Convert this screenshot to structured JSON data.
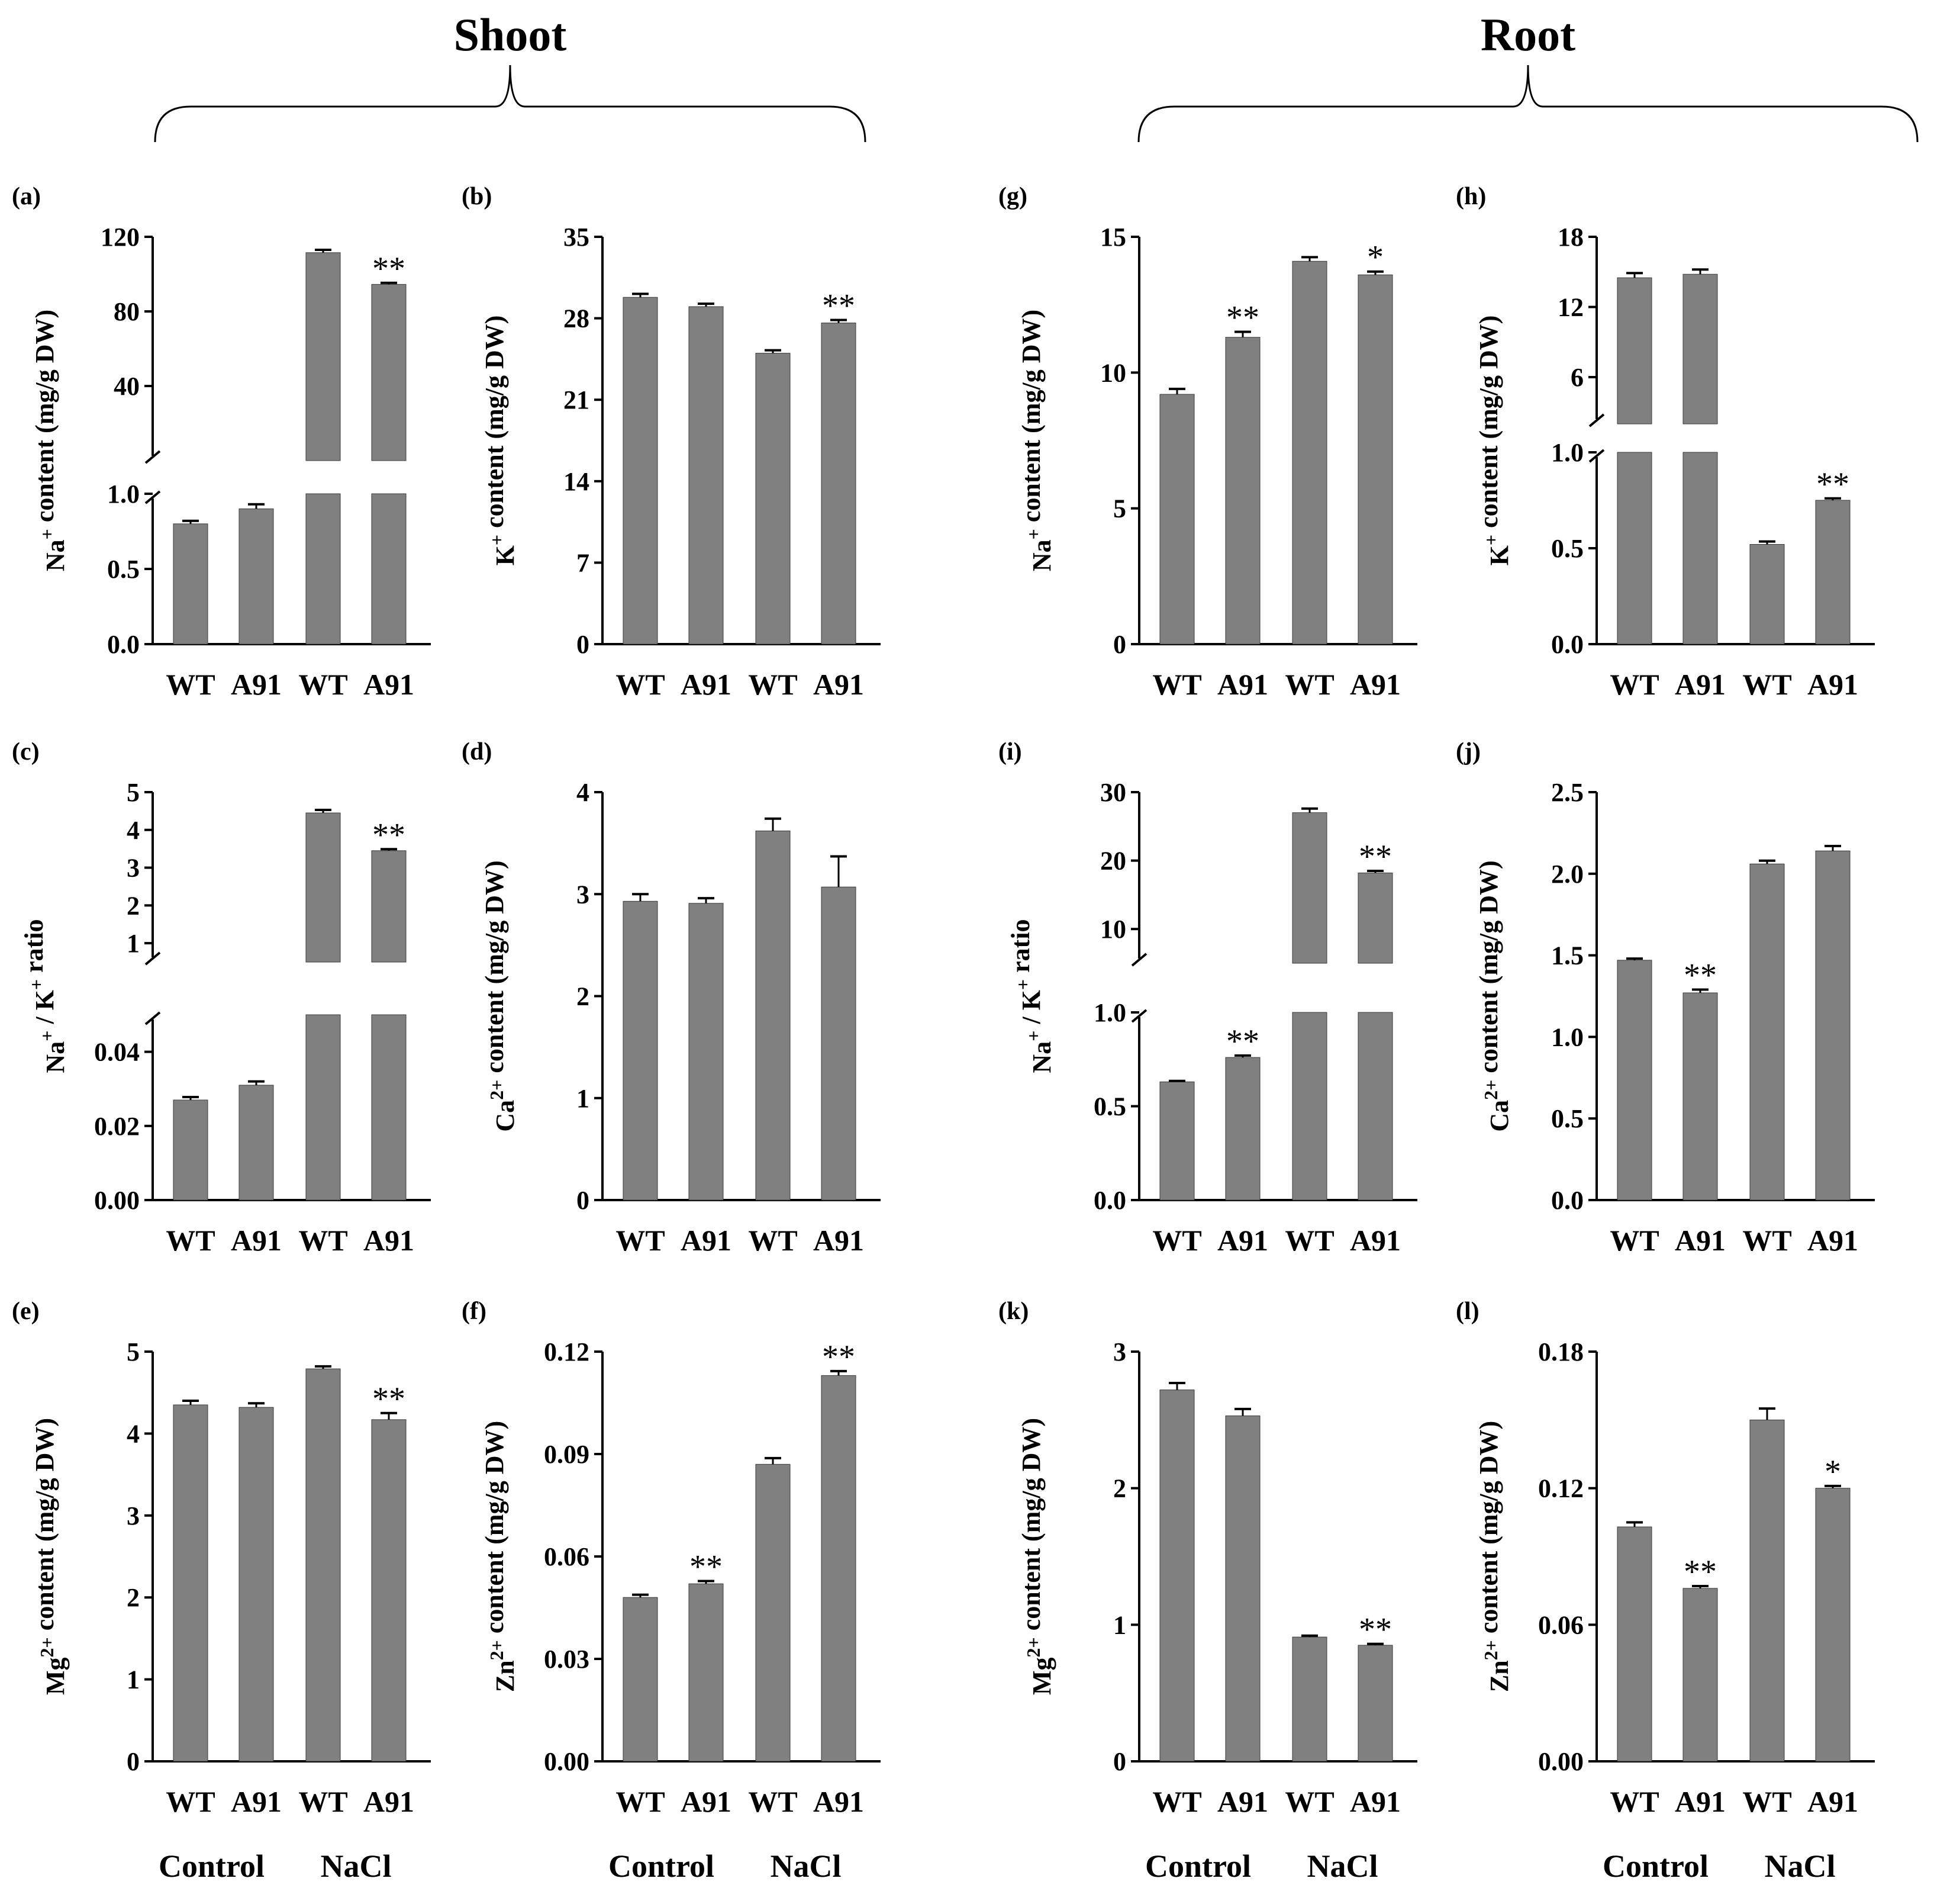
{
  "figure": {
    "section_titles": [
      "Shoot",
      "Root"
    ],
    "group_labels": [
      "Control",
      "NaCl"
    ]
  },
  "colors": {
    "bar": "#808080",
    "bar_edge": "#3a3a3a",
    "axis": "#000000",
    "text": "#000000"
  },
  "chart_data": [
    {
      "id": "a",
      "label": "(a)",
      "type": "bar",
      "section": "Shoot",
      "ylabel": "Na+ content (mg/g DW)",
      "categories": [
        "WT",
        "A91",
        "WT",
        "A91"
      ],
      "values": [
        0.8,
        0.9,
        111.5,
        94.5
      ],
      "errors": [
        0.02,
        0.03,
        1.5,
        0.8
      ],
      "significance": [
        "",
        "",
        "",
        "**"
      ],
      "broken_axis": {
        "lower": {
          "range": [
            0,
            1.0
          ],
          "ticks": [
            0.0,
            0.5,
            1.0
          ],
          "tick_labels": [
            "0.0",
            "0.5",
            "1.0"
          ]
        },
        "upper": {
          "range": [
            0,
            120
          ],
          "ticks": [
            40,
            80,
            120
          ],
          "tick_labels": [
            "40",
            "80",
            "120"
          ]
        }
      },
      "group_labels_shown": false
    },
    {
      "id": "b",
      "label": "(b)",
      "type": "bar",
      "section": "Shoot",
      "ylabel": "K+ content (mg/g DW)",
      "categories": [
        "WT",
        "A91",
        "WT",
        "A91"
      ],
      "values": [
        29.8,
        29.0,
        25.0,
        27.6
      ],
      "errors": [
        0.3,
        0.25,
        0.25,
        0.25
      ],
      "significance": [
        "",
        "",
        "",
        "**"
      ],
      "ylim": [
        0,
        35
      ],
      "ticks": [
        0,
        7,
        14,
        21,
        28,
        35
      ],
      "tick_labels": [
        "0",
        "7",
        "14",
        "21",
        "28",
        "35"
      ],
      "group_labels_shown": false
    },
    {
      "id": "c",
      "label": "(c)",
      "type": "bar",
      "section": "Shoot",
      "ylabel": "Na+ / K+ ratio",
      "categories": [
        "WT",
        "A91",
        "WT",
        "A91"
      ],
      "values": [
        0.027,
        0.031,
        4.45,
        3.45
      ],
      "errors": [
        0.0008,
        0.001,
        0.08,
        0.04
      ],
      "significance": [
        "",
        "",
        "",
        "**"
      ],
      "broken_axis": {
        "lower": {
          "range": [
            0,
            0.05
          ],
          "ticks": [
            0.0,
            0.02,
            0.04
          ],
          "tick_labels": [
            "0.00",
            "0.02",
            "0.04"
          ]
        },
        "upper": {
          "range": [
            0.5,
            5
          ],
          "ticks": [
            1,
            2,
            3,
            4,
            5
          ],
          "tick_labels": [
            "1",
            "2",
            "3",
            "4",
            "5"
          ]
        }
      },
      "group_labels_shown": false
    },
    {
      "id": "d",
      "label": "(d)",
      "type": "bar",
      "section": "Shoot",
      "ylabel": "Ca2+ content (mg/g DW)",
      "categories": [
        "WT",
        "A91",
        "WT",
        "A91"
      ],
      "values": [
        2.93,
        2.91,
        3.62,
        3.07
      ],
      "errors": [
        0.07,
        0.05,
        0.12,
        0.3
      ],
      "significance": [
        "",
        "",
        "",
        ""
      ],
      "ylim": [
        0,
        4
      ],
      "ticks": [
        0,
        1,
        2,
        3,
        4
      ],
      "tick_labels": [
        "0",
        "1",
        "2",
        "3",
        "4"
      ],
      "group_labels_shown": false
    },
    {
      "id": "e",
      "label": "(e)",
      "type": "bar",
      "section": "Shoot",
      "ylabel": "Mg2+ content (mg/g DW)",
      "categories": [
        "WT",
        "A91",
        "WT",
        "A91"
      ],
      "values": [
        4.35,
        4.32,
        4.79,
        4.17
      ],
      "errors": [
        0.05,
        0.05,
        0.03,
        0.08
      ],
      "significance": [
        "",
        "",
        "",
        "**"
      ],
      "ylim": [
        0,
        5
      ],
      "ticks": [
        0,
        1,
        2,
        3,
        4,
        5
      ],
      "tick_labels": [
        "0",
        "1",
        "2",
        "3",
        "4",
        "5"
      ],
      "group_labels_shown": true
    },
    {
      "id": "f",
      "label": "(f)",
      "type": "bar",
      "section": "Shoot",
      "ylabel": "Zn2+ content (mg/g DW)",
      "categories": [
        "WT",
        "A91",
        "WT",
        "A91"
      ],
      "values": [
        0.048,
        0.052,
        0.087,
        0.113
      ],
      "errors": [
        0.0008,
        0.0008,
        0.0018,
        0.0013
      ],
      "significance": [
        "",
        "**",
        "",
        "**"
      ],
      "ylim": [
        0,
        0.12
      ],
      "ticks": [
        0,
        0.03,
        0.06,
        0.09,
        0.12
      ],
      "tick_labels": [
        "0.00",
        "0.03",
        "0.06",
        "0.09",
        "0.12"
      ],
      "group_labels_shown": true
    },
    {
      "id": "g",
      "label": "(g)",
      "type": "bar",
      "section": "Root",
      "ylabel": "Na+ content (mg/g DW)",
      "categories": [
        "WT",
        "A91",
        "WT",
        "A91"
      ],
      "values": [
        9.2,
        11.3,
        14.1,
        13.6
      ],
      "errors": [
        0.2,
        0.2,
        0.15,
        0.12
      ],
      "significance": [
        "",
        "**",
        "",
        "*"
      ],
      "ylim": [
        0,
        15
      ],
      "ticks": [
        0,
        5,
        10,
        15
      ],
      "tick_labels": [
        "0",
        "5",
        "10",
        "15"
      ],
      "group_labels_shown": false
    },
    {
      "id": "h",
      "label": "(h)",
      "type": "bar",
      "section": "Root",
      "ylabel": "K+ content (mg/g DW)",
      "categories": [
        "WT",
        "A91",
        "WT",
        "A91"
      ],
      "values": [
        14.5,
        14.8,
        0.52,
        0.75
      ],
      "errors": [
        0.4,
        0.4,
        0.015,
        0.01
      ],
      "significance": [
        "",
        "",
        "",
        "**"
      ],
      "broken_axis": {
        "lower": {
          "range": [
            0,
            1.0
          ],
          "ticks": [
            0.0,
            0.5,
            1.0
          ],
          "tick_labels": [
            "0.0",
            "0.5",
            "1.0"
          ]
        },
        "upper": {
          "range": [
            2,
            18
          ],
          "ticks": [
            6,
            12,
            18
          ],
          "tick_labels": [
            "6",
            "12",
            "18"
          ]
        }
      },
      "group_labels_shown": false
    },
    {
      "id": "i",
      "label": "(i)",
      "type": "bar",
      "section": "Root",
      "ylabel": "Na+ / K+ ratio",
      "categories": [
        "WT",
        "A91",
        "WT",
        "A91"
      ],
      "values": [
        0.63,
        0.76,
        27.0,
        18.2
      ],
      "errors": [
        0.005,
        0.01,
        0.6,
        0.3
      ],
      "significance": [
        "",
        "**",
        "",
        "**"
      ],
      "broken_axis": {
        "lower": {
          "range": [
            0,
            1.0
          ],
          "ticks": [
            0.0,
            0.5,
            1.0
          ],
          "tick_labels": [
            "0.0",
            "0.5",
            "1.0"
          ]
        },
        "upper": {
          "range": [
            5,
            30
          ],
          "ticks": [
            10,
            20,
            30
          ],
          "tick_labels": [
            "10",
            "20",
            "30"
          ]
        }
      },
      "group_labels_shown": false
    },
    {
      "id": "j",
      "label": "(j)",
      "type": "bar",
      "section": "Root",
      "ylabel": "Ca2+ content (mg/g DW)",
      "categories": [
        "WT",
        "A91",
        "WT",
        "A91"
      ],
      "values": [
        1.47,
        1.27,
        2.06,
        2.14
      ],
      "errors": [
        0.01,
        0.02,
        0.02,
        0.03
      ],
      "significance": [
        "",
        "**",
        "",
        ""
      ],
      "ylim": [
        0,
        2.5
      ],
      "ticks": [
        0,
        0.5,
        1.0,
        1.5,
        2.0,
        2.5
      ],
      "tick_labels": [
        "0.0",
        "0.5",
        "1.0",
        "1.5",
        "2.0",
        "2.5"
      ],
      "group_labels_shown": false
    },
    {
      "id": "k",
      "label": "(k)",
      "type": "bar",
      "section": "Root",
      "ylabel": "Mg2+ content (mg/g DW)",
      "categories": [
        "WT",
        "A91",
        "WT",
        "A91"
      ],
      "values": [
        2.72,
        2.53,
        0.91,
        0.85
      ],
      "errors": [
        0.05,
        0.05,
        0.01,
        0.01
      ],
      "significance": [
        "",
        "",
        "",
        "**"
      ],
      "ylim": [
        0,
        3
      ],
      "ticks": [
        0,
        1,
        2,
        3
      ],
      "tick_labels": [
        "0",
        "1",
        "2",
        "3"
      ],
      "group_labels_shown": true
    },
    {
      "id": "l",
      "label": "(l)",
      "type": "bar",
      "section": "Root",
      "ylabel": "Zn2+ content (mg/g DW)",
      "categories": [
        "WT",
        "A91",
        "WT",
        "A91"
      ],
      "values": [
        0.103,
        0.076,
        0.15,
        0.12
      ],
      "errors": [
        0.002,
        0.001,
        0.005,
        0.001
      ],
      "significance": [
        "",
        "**",
        "",
        "*"
      ],
      "ylim": [
        0,
        0.18
      ],
      "ticks": [
        0,
        0.06,
        0.12,
        0.18
      ],
      "tick_labels": [
        "0.00",
        "0.06",
        "0.12",
        "0.18"
      ],
      "group_labels_shown": true
    }
  ]
}
